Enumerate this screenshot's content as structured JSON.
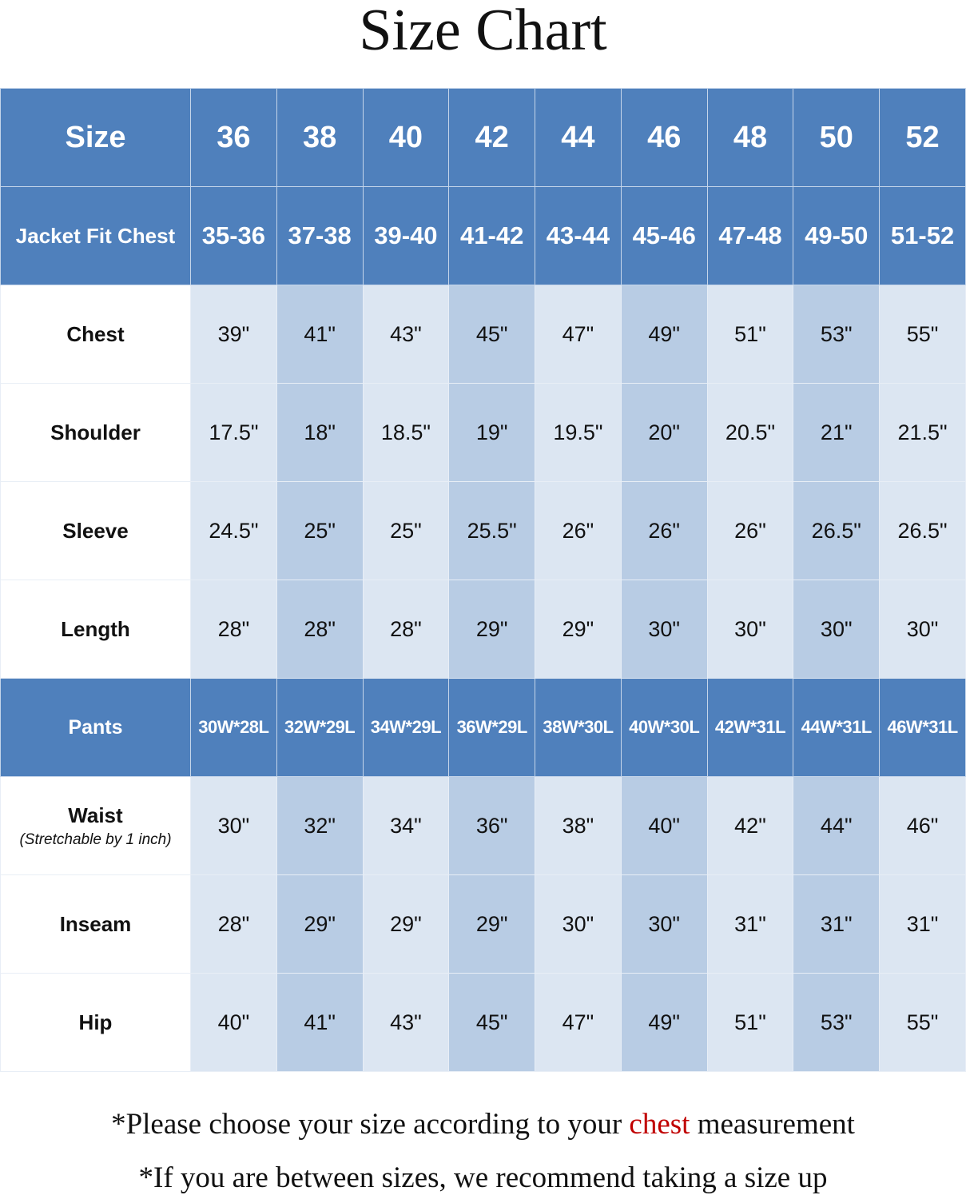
{
  "title": "Size Chart",
  "chart_data": {
    "type": "table",
    "title": "Size Chart",
    "header_color": "#4f80bc",
    "cell_colors": [
      "#dce6f2",
      "#b8cce4"
    ],
    "rows": [
      {
        "label": "Size",
        "kind": "header",
        "values": [
          "36",
          "38",
          "40",
          "42",
          "44",
          "46",
          "48",
          "50",
          "52"
        ]
      },
      {
        "label": "Jacket Fit Chest",
        "kind": "header",
        "values": [
          "35-36",
          "37-38",
          "39-40",
          "41-42",
          "43-44",
          "45-46",
          "47-48",
          "49-50",
          "51-52"
        ]
      },
      {
        "label": "Chest",
        "kind": "data",
        "values": [
          "39\"",
          "41\"",
          "43\"",
          "45\"",
          "47\"",
          "49\"",
          "51\"",
          "53\"",
          "55\""
        ]
      },
      {
        "label": "Shoulder",
        "kind": "data",
        "values": [
          "17.5\"",
          "18\"",
          "18.5\"",
          "19\"",
          "19.5\"",
          "20\"",
          "20.5\"",
          "21\"",
          "21.5\""
        ]
      },
      {
        "label": "Sleeve",
        "kind": "data",
        "values": [
          "24.5\"",
          "25\"",
          "25\"",
          "25.5\"",
          "26\"",
          "26\"",
          "26\"",
          "26.5\"",
          "26.5\""
        ]
      },
      {
        "label": "Length",
        "kind": "data",
        "values": [
          "28\"",
          "28\"",
          "28\"",
          "29\"",
          "29\"",
          "30\"",
          "30\"",
          "30\"",
          "30\""
        ]
      },
      {
        "label": "Pants",
        "kind": "header",
        "values": [
          "30W*28L",
          "32W*29L",
          "34W*29L",
          "36W*29L",
          "38W*30L",
          "40W*30L",
          "42W*31L",
          "44W*31L",
          "46W*31L"
        ]
      },
      {
        "label": "Waist",
        "note": "(Stretchable by 1 inch)",
        "kind": "data",
        "values": [
          "30\"",
          "32\"",
          "34\"",
          "36\"",
          "38\"",
          "40\"",
          "42\"",
          "44\"",
          "46\""
        ]
      },
      {
        "label": "Inseam",
        "kind": "data",
        "values": [
          "28\"",
          "29\"",
          "29\"",
          "29\"",
          "30\"",
          "30\"",
          "31\"",
          "31\"",
          "31\""
        ]
      },
      {
        "label": "Hip",
        "kind": "data",
        "values": [
          "40\"",
          "41\"",
          "43\"",
          "45\"",
          "47\"",
          "49\"",
          "51\"",
          "53\"",
          "55\""
        ]
      }
    ]
  },
  "footer": {
    "line1_before": "*Please choose your size according to your ",
    "line1_highlight": "chest",
    "line1_after": " measurement",
    "line2": "*If you are between sizes, we recommend taking a size up",
    "highlight_color": "#c00000"
  }
}
